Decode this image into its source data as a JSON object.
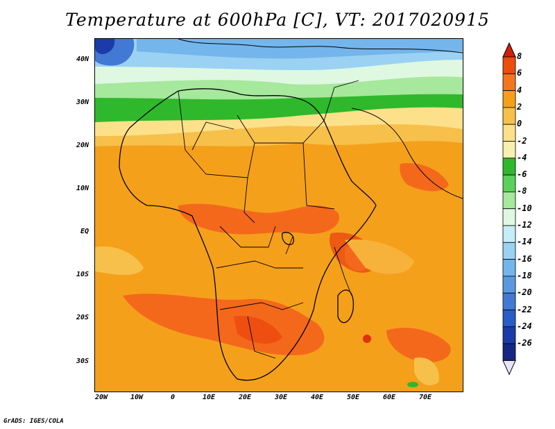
{
  "title": "Temperature at 600hPa [C], VT: 2017020915",
  "credit": "GrADS: IGES/COLA",
  "lat_labels": [
    "40N",
    "30N",
    "20N",
    "10N",
    "EQ",
    "10S",
    "20S",
    "30S"
  ],
  "lon_labels": [
    "20W",
    "10W",
    "0",
    "10E",
    "20E",
    "30E",
    "40E",
    "50E",
    "60E",
    "70E"
  ],
  "colorbar": {
    "labels": [
      "8",
      "6",
      "4",
      "2",
      "0",
      "-2",
      "-4",
      "-6",
      "-8",
      "-10",
      "-12",
      "-14",
      "-16",
      "-18",
      "-20",
      "-22",
      "-24",
      "-26"
    ],
    "colors": [
      "#d41e0a",
      "#ec4d0d",
      "#f5751e",
      "#f5a01a",
      "#f7c04a",
      "#fde08a",
      "#f8f0ae",
      "#2fb82c",
      "#5bd05a",
      "#a6e89c",
      "#dff8e2",
      "#c6ecf8",
      "#9bd1f3",
      "#74b5ec",
      "#5b98e2",
      "#4179d4",
      "#2a5cc5",
      "#1b3ca8",
      "#142784",
      "#0b1464"
    ]
  },
  "field_colors": {
    "hot": "#f4681c",
    "warm": "#f5a01a",
    "mild": "#f7c04a",
    "cool": "#fde08a",
    "green": "#2fb82c",
    "lightgreen": "#a6e89c",
    "pale": "#dff8e2",
    "lightblue": "#9bd1f3",
    "blue": "#4179d4",
    "darkblue": "#1b3ca8",
    "peak": "#e0300e"
  },
  "icons": {
    "upper_arrow": "triangle-up",
    "lower_arrow": "triangle-down"
  }
}
